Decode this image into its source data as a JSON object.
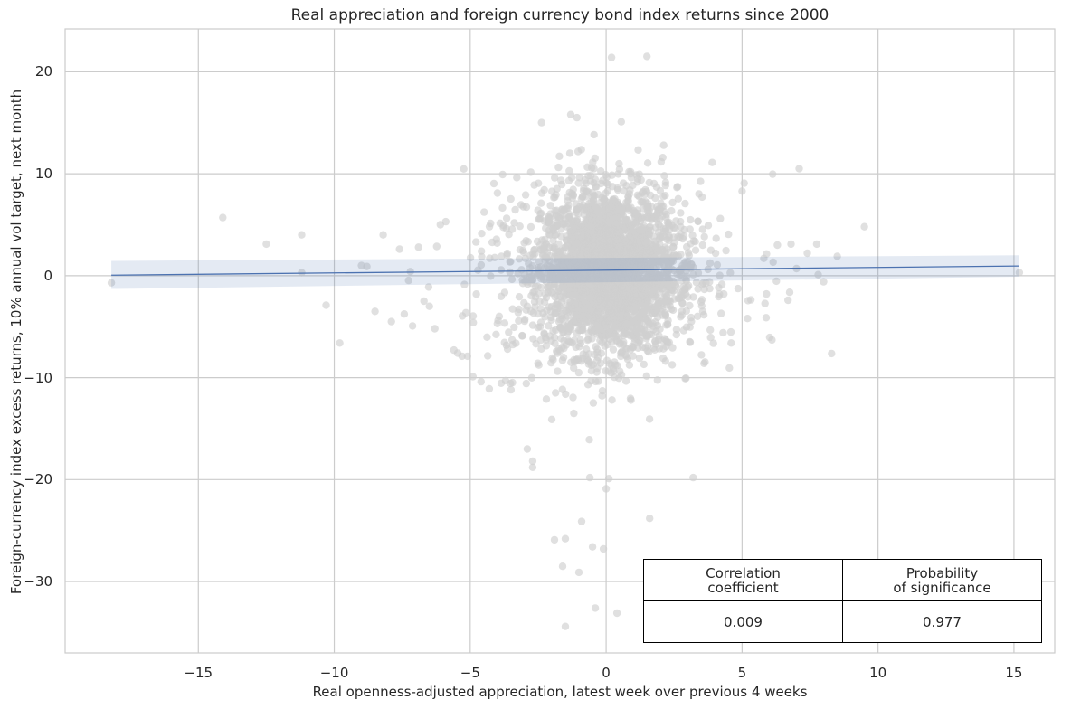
{
  "chart_data": {
    "type": "scatter",
    "title": "Real appreciation and foreign currency bond index returns since 2000",
    "xlabel": "Real openness-adjusted appreciation, latest week over previous 4 weeks",
    "ylabel": "Foreign-currency index excess returns, 10% annual vol target, next month",
    "xlim": [
      -19.9,
      16.5
    ],
    "ylim": [
      -37.0,
      24.2
    ],
    "xticks": [
      -15,
      -10,
      -5,
      0,
      5,
      10,
      15
    ],
    "yticks": [
      20,
      10,
      0,
      -10,
      -20,
      -30
    ],
    "xtick_labels": [
      "−15",
      "−10",
      "−5",
      "0",
      "5",
      "10",
      "15"
    ],
    "ytick_labels": [
      "20",
      "10",
      "0",
      "−10",
      "−20",
      "−30"
    ],
    "grid": true,
    "point_color": "#cfcfcf",
    "regression": {
      "x": [
        -18.2,
        15.2
      ],
      "y": [
        0.05,
        0.95
      ],
      "ci_low": [
        -1.3,
        -0.1
      ],
      "ci_high": [
        1.45,
        2.0
      ],
      "color": "#4c72b0"
    },
    "outliers": [
      [
        -18.2,
        -0.7
      ],
      [
        -14.1,
        5.7
      ],
      [
        -12.5,
        3.1
      ],
      [
        -11.2,
        4.0
      ],
      [
        -11.2,
        0.3
      ],
      [
        -9.8,
        -6.6
      ],
      [
        -9.0,
        1.0
      ],
      [
        -8.5,
        -3.5
      ],
      [
        -8.2,
        4.0
      ],
      [
        -7.9,
        -4.5
      ],
      [
        -7.6,
        2.6
      ],
      [
        -7.2,
        0.4
      ],
      [
        -6.9,
        2.8
      ],
      [
        -6.7,
        -2.5
      ],
      [
        -6.5,
        -3.0
      ],
      [
        -6.3,
        -5.2
      ],
      [
        -6.1,
        5.0
      ],
      [
        -5.9,
        5.3
      ],
      [
        -5.6,
        -7.3
      ],
      [
        -5.3,
        -7.9
      ],
      [
        -5.1,
        -7.9
      ],
      [
        -4.9,
        -9.9
      ],
      [
        -4.6,
        -10.4
      ],
      [
        -4.3,
        -11.1
      ],
      [
        -3.7,
        -10.3
      ],
      [
        -3.5,
        -11.2
      ],
      [
        -2.9,
        -17.0
      ],
      [
        -2.7,
        -18.8
      ],
      [
        -2.7,
        -18.2
      ],
      [
        -2.2,
        -12.1
      ],
      [
        -2.0,
        -14.1
      ],
      [
        -1.9,
        -25.9
      ],
      [
        -1.6,
        -28.5
      ],
      [
        -1.5,
        -25.8
      ],
      [
        -1.5,
        -34.4
      ],
      [
        -1.3,
        15.8
      ],
      [
        -1.0,
        -29.1
      ],
      [
        -0.9,
        -24.1
      ],
      [
        -0.6,
        -19.8
      ],
      [
        -0.5,
        -26.6
      ],
      [
        -0.4,
        -32.6
      ],
      [
        -0.1,
        -26.8
      ],
      [
        0.0,
        -20.9
      ],
      [
        0.1,
        -19.9
      ],
      [
        0.2,
        21.4
      ],
      [
        0.4,
        -33.1
      ],
      [
        1.5,
        21.5
      ],
      [
        1.6,
        -23.8
      ],
      [
        3.2,
        -19.8
      ],
      [
        3.6,
        -8.6
      ],
      [
        4.6,
        -6.6
      ],
      [
        5.0,
        8.3
      ],
      [
        5.2,
        -4.2
      ],
      [
        5.8,
        1.7
      ],
      [
        6.1,
        -6.3
      ],
      [
        6.3,
        3.0
      ],
      [
        6.8,
        3.1
      ],
      [
        7.0,
        0.7
      ],
      [
        7.1,
        10.5
      ],
      [
        7.4,
        2.2
      ],
      [
        7.8,
        0.1
      ],
      [
        8.0,
        -0.6
      ],
      [
        8.5,
        1.9
      ],
      [
        9.5,
        4.8
      ],
      [
        15.2,
        0.3
      ],
      [
        -10.3,
        -2.9
      ],
      [
        -8.8,
        0.9
      ],
      [
        -4.0,
        8.1
      ],
      [
        4.2,
        5.6
      ],
      [
        3.9,
        11.1
      ]
    ]
  },
  "stats_table": {
    "header_1": "Correlation\ncoefficient",
    "header_2": "Probability\nof significance",
    "value_1": "0.009",
    "value_2": "0.977"
  }
}
